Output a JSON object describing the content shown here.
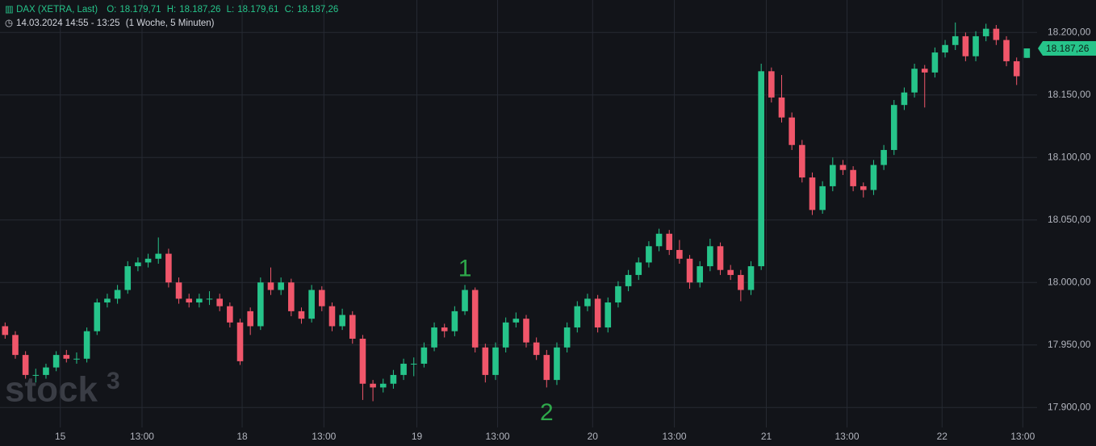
{
  "chart_data": {
    "type": "candlestick",
    "header": {
      "symbol": "DAX (XETRA, Last)",
      "o_label": "O:",
      "o": "18.179,71",
      "h_label": "H:",
      "h": "18.187,26",
      "l_label": "L:",
      "l": "18.179,61",
      "c_label": "C:",
      "c": "18.187,26",
      "range": "14.03.2024 14:55 - 13:25",
      "period": "(1 Woche, 5 Minuten)"
    },
    "watermark": "stock",
    "watermark_sup": "3",
    "up_color": "#26c48a",
    "down_color": "#f0566a",
    "grid": true,
    "xlim": [
      -0.5,
      101
    ],
    "xticks": [
      {
        "value": 5.4,
        "label": "15"
      },
      {
        "value": 13.4,
        "label": "13:00"
      },
      {
        "value": 23.2,
        "label": "18"
      },
      {
        "value": 31.2,
        "label": "13:00"
      },
      {
        "value": 40.3,
        "label": "19"
      },
      {
        "value": 48.2,
        "label": "13:00"
      },
      {
        "value": 57.5,
        "label": "20"
      },
      {
        "value": 65.5,
        "label": "13:00"
      },
      {
        "value": 74.5,
        "label": "21"
      },
      {
        "value": 82.4,
        "label": "13:00"
      },
      {
        "value": 91.7,
        "label": "22"
      },
      {
        "value": 99.6,
        "label": "13:00"
      }
    ],
    "ylim": [
      17884,
      18226
    ],
    "yticks": [
      {
        "value": 17900,
        "label": "17.900,00"
      },
      {
        "value": 17950,
        "label": "17.950,00"
      },
      {
        "value": 18000,
        "label": "18.000,00"
      },
      {
        "value": 18050,
        "label": "18.050,00"
      },
      {
        "value": 18100,
        "label": "18.100,00"
      },
      {
        "value": 18150,
        "label": "18.150,00"
      },
      {
        "value": 18200,
        "label": "18.200,00"
      }
    ],
    "last_price": {
      "value": 18187.26,
      "label": "18.187,26"
    },
    "annotations": [
      {
        "text": "1",
        "x": 45,
        "y": 18010
      },
      {
        "text": "2",
        "x": 53,
        "y": 17895
      }
    ],
    "ohlc": [
      [
        17965,
        17968,
        17955,
        17958
      ],
      [
        17958,
        17961,
        17939,
        17942
      ],
      [
        17942,
        17945,
        17923,
        17926
      ],
      [
        17926,
        17931,
        17920,
        17926
      ],
      [
        17926,
        17935,
        17923,
        17932
      ],
      [
        17932,
        17945,
        17929,
        17942
      ],
      [
        17942,
        17946,
        17936,
        17939
      ],
      [
        17939,
        17944,
        17935,
        17939
      ],
      [
        17939,
        17964,
        17936,
        17961
      ],
      [
        17961,
        17987,
        17958,
        17984
      ],
      [
        17984,
        17991,
        17980,
        17987
      ],
      [
        17987,
        17998,
        17983,
        17994
      ],
      [
        17994,
        18017,
        17991,
        18013
      ],
      [
        18013,
        18020,
        18009,
        18016
      ],
      [
        18016,
        18023,
        18012,
        18019
      ],
      [
        18019,
        18036,
        18015,
        18023
      ],
      [
        18023,
        18027,
        17996,
        18000
      ],
      [
        18000,
        18004,
        17983,
        17987
      ],
      [
        17987,
        17991,
        17980,
        17984
      ],
      [
        17984,
        17991,
        17980,
        17987
      ],
      [
        17987,
        17993,
        17982,
        17987
      ],
      [
        17987,
        17991,
        17977,
        17981
      ],
      [
        17981,
        17984,
        17964,
        17968
      ],
      [
        17968,
        17971,
        17934,
        17937
      ],
      [
        17977,
        17980,
        17958,
        17965
      ],
      [
        17965,
        18004,
        17962,
        18000
      ],
      [
        18000,
        18012,
        17990,
        17994
      ],
      [
        17994,
        18004,
        17990,
        18000
      ],
      [
        18000,
        18003,
        17973,
        17977
      ],
      [
        17977,
        17980,
        17967,
        17971
      ],
      [
        17971,
        17998,
        17968,
        17994
      ],
      [
        17994,
        17997,
        17977,
        17981
      ],
      [
        17981,
        17984,
        17961,
        17965
      ],
      [
        17965,
        17979,
        17962,
        17974
      ],
      [
        17974,
        17977,
        17951,
        17955
      ],
      [
        17955,
        17958,
        17906,
        17919
      ],
      [
        17919,
        17922,
        17905,
        17916
      ],
      [
        17916,
        17923,
        17912,
        17919
      ],
      [
        17919,
        17930,
        17915,
        17926
      ],
      [
        17926,
        17939,
        17922,
        17935
      ],
      [
        17935,
        17940,
        17925,
        17935
      ],
      [
        17935,
        17952,
        17932,
        17948
      ],
      [
        17948,
        17968,
        17945,
        17964
      ],
      [
        17964,
        17967,
        17956,
        17961
      ],
      [
        17961,
        17981,
        17957,
        17977
      ],
      [
        17977,
        17998,
        17974,
        17994
      ],
      [
        17994,
        17996,
        17944,
        17948
      ],
      [
        17948,
        17951,
        17920,
        17926
      ],
      [
        17926,
        17952,
        17922,
        17948
      ],
      [
        17948,
        17972,
        17944,
        17968
      ],
      [
        17968,
        17976,
        17964,
        17971
      ],
      [
        17971,
        17974,
        17948,
        17952
      ],
      [
        17952,
        17956,
        17938,
        17942
      ],
      [
        17942,
        17946,
        17916,
        17922
      ],
      [
        17922,
        17952,
        17918,
        17948
      ],
      [
        17948,
        17968,
        17944,
        17964
      ],
      [
        17964,
        17985,
        17960,
        17981
      ],
      [
        17981,
        17991,
        17977,
        17987
      ],
      [
        17987,
        17990,
        17960,
        17964
      ],
      [
        17964,
        17988,
        17960,
        17984
      ],
      [
        17984,
        18001,
        17980,
        17997
      ],
      [
        17997,
        18010,
        17993,
        18006
      ],
      [
        18006,
        18020,
        18002,
        18016
      ],
      [
        18016,
        18033,
        18012,
        18029
      ],
      [
        18029,
        18043,
        18025,
        18039
      ],
      [
        18039,
        18042,
        18022,
        18026
      ],
      [
        18026,
        18034,
        18015,
        18019
      ],
      [
        18019,
        18022,
        17995,
        18000
      ],
      [
        18000,
        18017,
        17996,
        18013
      ],
      [
        18013,
        18035,
        18009,
        18029
      ],
      [
        18029,
        18032,
        18006,
        18010
      ],
      [
        18010,
        18014,
        18002,
        18006
      ],
      [
        18006,
        18010,
        17985,
        17994
      ],
      [
        17994,
        18017,
        17990,
        18013
      ],
      [
        18013,
        18175,
        18010,
        18169
      ],
      [
        18169,
        18172,
        18144,
        18148
      ],
      [
        18148,
        18166,
        18128,
        18132
      ],
      [
        18132,
        18136,
        18106,
        18110
      ],
      [
        18110,
        18114,
        18080,
        18084
      ],
      [
        18084,
        18088,
        18054,
        18058
      ],
      [
        18058,
        18081,
        18055,
        18077
      ],
      [
        18077,
        18100,
        18073,
        18094
      ],
      [
        18094,
        18098,
        18086,
        18090
      ],
      [
        18090,
        18093,
        18073,
        18077
      ],
      [
        18077,
        18080,
        18068,
        18074
      ],
      [
        18074,
        18098,
        18070,
        18094
      ],
      [
        18094,
        18110,
        18090,
        18106
      ],
      [
        18106,
        18146,
        18102,
        18142
      ],
      [
        18142,
        18156,
        18138,
        18152
      ],
      [
        18152,
        18175,
        18148,
        18171
      ],
      [
        18171,
        18174,
        18140,
        18168
      ],
      [
        18168,
        18188,
        18164,
        18184
      ],
      [
        18184,
        18194,
        18180,
        18190
      ],
      [
        18190,
        18208,
        18186,
        18197
      ],
      [
        18197,
        18200,
        18177,
        18181
      ],
      [
        18181,
        18201,
        18177,
        18197
      ],
      [
        18197,
        18207,
        18193,
        18203
      ],
      [
        18203,
        18206,
        18190,
        18194
      ],
      [
        18194,
        18197,
        18173,
        18177
      ],
      [
        18177,
        18180,
        18158,
        18165
      ],
      [
        18179.71,
        18187.26,
        18179.61,
        18187.26
      ]
    ]
  }
}
